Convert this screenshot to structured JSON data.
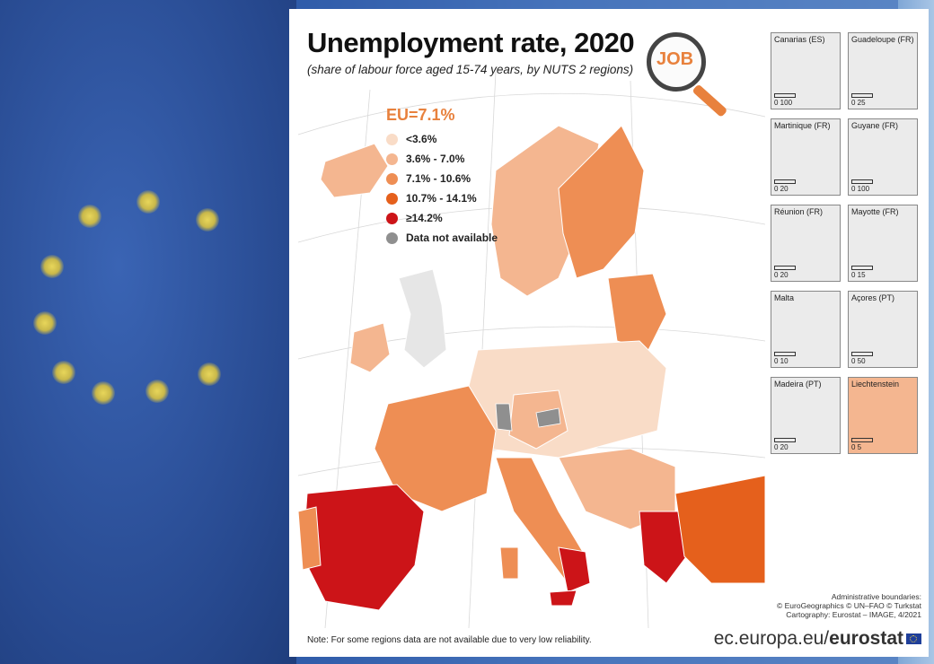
{
  "map": {
    "title": "Unemployment rate, 2020",
    "subtitle": "(share of labour force aged 15-74 years, by NUTS 2 regions)",
    "eu_average": "EU=7.1%",
    "badge_text": "JOB",
    "legend": [
      {
        "label": "<3.6%",
        "color": "#f9dcc7"
      },
      {
        "label": "3.6% - 7.0%",
        "color": "#f4b690"
      },
      {
        "label": "7.1% - 10.6%",
        "color": "#ee8e54"
      },
      {
        "label": "10.7% - 14.1%",
        "color": "#e5601c"
      },
      {
        "label": "≥14.2%",
        "color": "#cc1418"
      },
      {
        "label": "Data not available",
        "color": "#8f8f8f"
      }
    ],
    "insets": [
      {
        "label": "Canarias (ES)",
        "scale": "0  100"
      },
      {
        "label": "Guadeloupe (FR)",
        "scale": "0  25"
      },
      {
        "label": "Martinique (FR)",
        "scale": "0    20"
      },
      {
        "label": "Guyane (FR)",
        "scale": "0  100"
      },
      {
        "label": "Réunion (FR)",
        "scale": "0    20"
      },
      {
        "label": "Mayotte (FR)",
        "scale": "0    15"
      },
      {
        "label": "Malta",
        "scale": "0    10"
      },
      {
        "label": "Açores (PT)",
        "scale": "0    50"
      },
      {
        "label": "Madeira (PT)",
        "scale": "0    20"
      },
      {
        "label": "Liechtenstein",
        "scale": "0  5"
      }
    ],
    "credits": [
      "Administrative boundaries:",
      "© EuroGeographics © UN–FAO © Turkstat",
      "Cartography: Eurostat – IMAGE, 4/2021"
    ],
    "note": "Note: For some regions data are not available due to very low reliability.",
    "brand_prefix": "ec.europa.eu/",
    "brand_name": "eurostat"
  }
}
